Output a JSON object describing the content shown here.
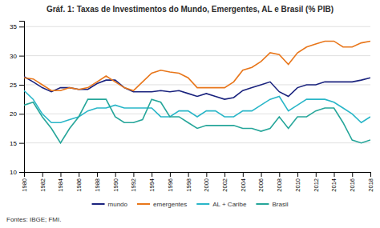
{
  "chart_data": {
    "type": "line",
    "title": "Gráf. 1: Taxas de Investimentos do Mundo, Emergentes, AL e Brasil (% PIB)",
    "annotations": [
      "Fontes: IBGE; FMI."
    ],
    "x": [
      1980,
      1981,
      1982,
      1983,
      1984,
      1985,
      1986,
      1987,
      1988,
      1989,
      1990,
      1991,
      1992,
      1993,
      1994,
      1995,
      1996,
      1997,
      1998,
      1999,
      2000,
      2001,
      2002,
      2003,
      2004,
      2005,
      2006,
      2007,
      2008,
      2009,
      2010,
      2011,
      2012,
      2013,
      2014,
      2015,
      2016,
      2017,
      2018
    ],
    "xlim": [
      1980,
      2018
    ],
    "xticks": [
      1980,
      1982,
      1984,
      1986,
      1988,
      1990,
      1992,
      1994,
      1996,
      1998,
      2000,
      2002,
      2004,
      2006,
      2008,
      2010,
      2012,
      2014,
      2016,
      2018
    ],
    "ylim": [
      10,
      36
    ],
    "yticks": [
      10,
      15,
      20,
      25,
      30,
      35
    ],
    "grid": true,
    "legend": "bottom",
    "series": [
      {
        "name": "mundo",
        "color": "#1a237e",
        "values": [
          26.4,
          25.5,
          24.5,
          23.8,
          24.5,
          24.5,
          24.2,
          24.2,
          25.2,
          25.8,
          25.8,
          24.5,
          23.8,
          23.8,
          23.8,
          24.0,
          23.8,
          24.0,
          23.5,
          23.0,
          23.5,
          23.0,
          22.5,
          22.8,
          24.0,
          24.5,
          25.0,
          25.5,
          23.8,
          23.0,
          24.5,
          25.0,
          25.0,
          25.5,
          25.5,
          25.5,
          25.5,
          25.8,
          26.2
        ]
      },
      {
        "name": "emergentes",
        "color": "#E8761A",
        "values": [
          26.2,
          26.0,
          25.0,
          24.0,
          24.0,
          24.5,
          24.2,
          24.5,
          25.5,
          26.5,
          25.5,
          24.5,
          24.0,
          25.5,
          27.0,
          27.5,
          27.2,
          27.0,
          26.2,
          24.5,
          24.5,
          24.5,
          24.5,
          25.5,
          27.5,
          28.0,
          29.0,
          30.5,
          30.2,
          28.5,
          30.5,
          31.5,
          32.0,
          32.5,
          32.5,
          31.5,
          31.5,
          32.2,
          32.5
        ]
      },
      {
        "name": "AL + Caribe",
        "color": "#29B6C8",
        "values": [
          24.0,
          22.5,
          20.0,
          18.5,
          18.5,
          19.0,
          19.5,
          20.5,
          21.0,
          21.0,
          21.5,
          21.0,
          21.0,
          21.0,
          21.0,
          19.5,
          19.5,
          20.5,
          20.5,
          19.5,
          20.5,
          20.5,
          19.5,
          19.5,
          20.5,
          20.5,
          21.5,
          22.5,
          23.0,
          20.5,
          21.5,
          22.5,
          22.5,
          22.5,
          22.0,
          21.0,
          20.0,
          18.5,
          19.5
        ]
      },
      {
        "name": "Brasil",
        "color": "#26A69A",
        "values": [
          21.5,
          22.0,
          19.5,
          17.5,
          15.0,
          17.5,
          19.5,
          22.5,
          22.5,
          22.5,
          19.5,
          18.5,
          18.5,
          19.0,
          22.5,
          22.0,
          19.5,
          19.5,
          18.5,
          17.5,
          18.0,
          18.0,
          18.0,
          18.0,
          17.5,
          17.5,
          17.0,
          17.5,
          19.5,
          17.5,
          19.5,
          19.5,
          20.5,
          21.0,
          21.0,
          18.5,
          15.5,
          15.0,
          15.5
        ]
      }
    ]
  }
}
